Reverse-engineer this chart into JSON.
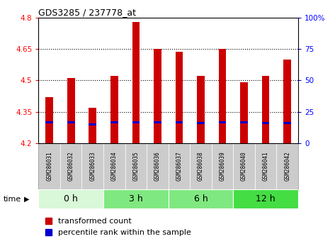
{
  "title": "GDS3285 / 237778_at",
  "samples": [
    "GSM286031",
    "GSM286032",
    "GSM286033",
    "GSM286034",
    "GSM286035",
    "GSM286036",
    "GSM286037",
    "GSM286038",
    "GSM286039",
    "GSM286040",
    "GSM286041",
    "GSM286042"
  ],
  "bar_values": [
    4.42,
    4.51,
    4.37,
    4.52,
    4.78,
    4.65,
    4.635,
    4.52,
    4.65,
    4.49,
    4.52,
    4.6
  ],
  "blue_values": [
    4.293,
    4.293,
    4.285,
    4.293,
    4.293,
    4.293,
    4.293,
    4.29,
    4.293,
    4.293,
    4.29,
    4.29
  ],
  "bar_bottom": 4.2,
  "ylim": [
    4.2,
    4.8
  ],
  "yticks_left": [
    4.2,
    4.35,
    4.5,
    4.65,
    4.8
  ],
  "yticks_right": [
    0,
    25,
    50,
    75,
    100
  ],
  "time_groups": [
    {
      "label": "0 h",
      "start": 0,
      "end": 3,
      "color": "#d8f8d8"
    },
    {
      "label": "3 h",
      "start": 3,
      "end": 6,
      "color": "#80e880"
    },
    {
      "label": "6 h",
      "start": 6,
      "end": 9,
      "color": "#80e880"
    },
    {
      "label": "12 h",
      "start": 9,
      "end": 12,
      "color": "#44dd44"
    }
  ],
  "bar_color": "#cc0000",
  "blue_color": "#0000cc",
  "bg_color": "#ffffff",
  "label_bg_color": "#cccccc",
  "bar_width": 0.35
}
